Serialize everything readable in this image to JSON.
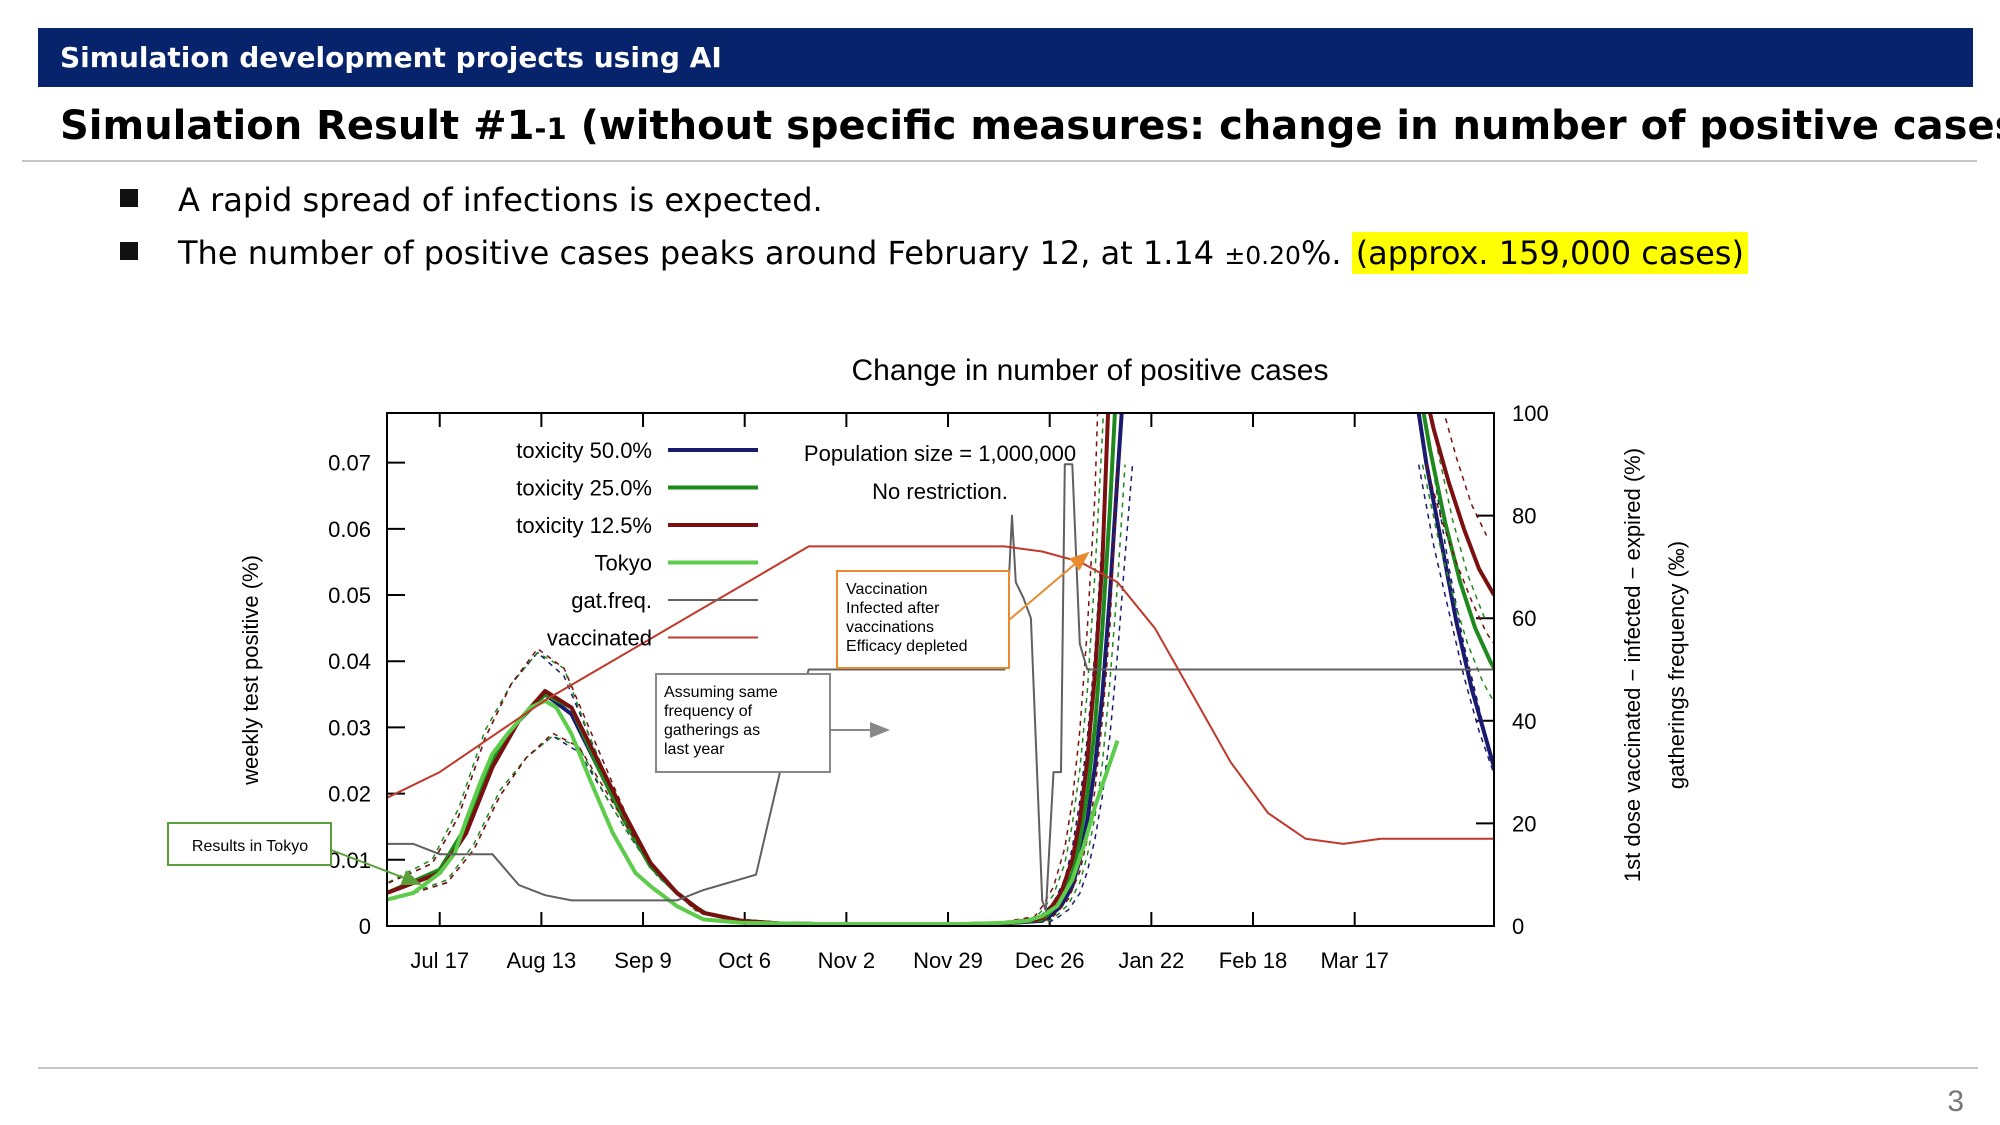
{
  "banner": "Simulation development projects using AI",
  "title": {
    "main": "Simulation Result #1",
    "sub": "-1",
    "rest": " (without specific measures: change in number of positive cases)"
  },
  "bullets": {
    "b1": "A rapid spread of infections is expected.",
    "b2_a": "The number of positive cases peaks around February 12, at 1.14 ",
    "b2_pm": "±0.20",
    "b2_b": "%. ",
    "b2_hl": "(approx. 159,000 cases)"
  },
  "page_number": "3",
  "colors": {
    "banner_bg": "#06236b",
    "highlight": "#ffff00",
    "tox50": "#1a1a6e",
    "tox25": "#1e8a1e",
    "tox12": "#7a1010",
    "tokyo": "#5ccc4a",
    "gat": "#606060",
    "vacc": "#c0392b",
    "callout_green": "#5aa03a",
    "callout_orange": "#e88a30",
    "callout_gray": "#888888"
  },
  "chart_data": {
    "type": "line",
    "title": "Change in number of positive cases",
    "ylabel": "weekly test positive (%)",
    "y2label_line1": "1st dose vaccinated − infected − expired (%)",
    "y2label_line2": "gatherings frequency (‰)",
    "x_ticks": [
      "Jul 17",
      "Aug 13",
      "Sep 9",
      "Oct 6",
      "Nov 2",
      "Nov 29",
      "Dec 26",
      "Jan 22",
      "Feb 18",
      "Mar 17"
    ],
    "xlim": [
      -14,
      280
    ],
    "ylim": [
      0,
      0.0775
    ],
    "y_ticks": [
      "0",
      "0.01",
      "0.02",
      "0.03",
      "0.04",
      "0.05",
      "0.06",
      "0.07"
    ],
    "y2lim": [
      0,
      100
    ],
    "y2_ticks": [
      "0",
      "20",
      "40",
      "60",
      "80",
      "100"
    ],
    "annotation_box": {
      "line1": "Population size = 1,000,000",
      "line2": "No restriction."
    },
    "callouts": {
      "tokyo": "Results in Tokyo",
      "gatherings": [
        "Assuming same",
        "frequency of",
        "gatherings as",
        "last year"
      ],
      "vaccination": [
        "Vaccination",
        "Infected after",
        "vaccinations",
        "Efficacy depleted"
      ]
    },
    "legend": [
      "toxicity 50.0%",
      "toxicity 25.0%",
      "toxicity 12.5%",
      "Tokyo",
      "gat.freq.",
      "vaccinated"
    ],
    "series": [
      {
        "name": "toxicity 50.0%",
        "axis": "left",
        "x": [
          -14,
          0,
          7,
          14,
          21,
          28,
          35,
          42,
          49,
          56,
          63,
          70,
          80,
          90,
          100,
          110,
          120,
          130,
          140,
          150,
          160,
          162,
          165,
          168,
          170,
          172,
          174,
          176,
          178,
          180,
          182
        ],
        "y": [
          0.005,
          0.008,
          0.014,
          0.024,
          0.031,
          0.035,
          0.032,
          0.024,
          0.016,
          0.009,
          0.005,
          0.002,
          0.0008,
          0.0004,
          0.0003,
          0.0003,
          0.0003,
          0.0003,
          0.0003,
          0.0004,
          0.0008,
          0.0015,
          0.003,
          0.006,
          0.01,
          0.016,
          0.024,
          0.035,
          0.05,
          0.068,
          0.085
        ]
      },
      {
        "name": "toxicity 50.0%",
        "axis": "left",
        "x": [
          258,
          262,
          266,
          270,
          274,
          278,
          280
        ],
        "y": [
          0.085,
          0.07,
          0.058,
          0.046,
          0.036,
          0.028,
          0.024
        ]
      },
      {
        "name": "toxicity 25.0%",
        "axis": "left",
        "x": [
          -14,
          0,
          7,
          14,
          21,
          28,
          35,
          42,
          49,
          56,
          63,
          70,
          80,
          90,
          100,
          110,
          120,
          130,
          140,
          150,
          160,
          162,
          165,
          168,
          170,
          172,
          174,
          176,
          178,
          180
        ],
        "y": [
          0.005,
          0.0085,
          0.015,
          0.025,
          0.031,
          0.035,
          0.033,
          0.024,
          0.016,
          0.009,
          0.005,
          0.002,
          0.0008,
          0.0004,
          0.0003,
          0.0003,
          0.0003,
          0.0003,
          0.0003,
          0.0004,
          0.001,
          0.002,
          0.004,
          0.008,
          0.013,
          0.02,
          0.03,
          0.045,
          0.063,
          0.085
        ]
      },
      {
        "name": "toxicity 25.0%",
        "axis": "left",
        "x": [
          259,
          263,
          267,
          271,
          275,
          279,
          280
        ],
        "y": [
          0.085,
          0.072,
          0.061,
          0.052,
          0.045,
          0.04,
          0.039
        ]
      },
      {
        "name": "toxicity 12.5%",
        "axis": "left",
        "x": [
          -14,
          0,
          7,
          14,
          21,
          28,
          35,
          42,
          49,
          56,
          63,
          70,
          80,
          90,
          100,
          110,
          120,
          130,
          140,
          150,
          160,
          162,
          165,
          168,
          170,
          172,
          174,
          176,
          178
        ],
        "y": [
          0.005,
          0.008,
          0.014,
          0.024,
          0.031,
          0.0355,
          0.033,
          0.025,
          0.017,
          0.0095,
          0.005,
          0.002,
          0.0008,
          0.0004,
          0.0003,
          0.0003,
          0.0003,
          0.0003,
          0.0003,
          0.0004,
          0.0012,
          0.0025,
          0.005,
          0.01,
          0.016,
          0.025,
          0.038,
          0.055,
          0.085
        ]
      },
      {
        "name": "toxicity 12.5%",
        "axis": "left",
        "x": [
          260,
          264,
          268,
          272,
          276,
          280
        ],
        "y": [
          0.085,
          0.075,
          0.067,
          0.06,
          0.054,
          0.05
        ]
      },
      {
        "name": "Tokyo",
        "axis": "left",
        "x": [
          -14,
          -7,
          0,
          4,
          7,
          11,
          14,
          18,
          21,
          24,
          28,
          31,
          35,
          40,
          46,
          52,
          56,
          63,
          70,
          80,
          90,
          100,
          110,
          120,
          130,
          140,
          150,
          156,
          160,
          164,
          168,
          171,
          174,
          177,
          180
        ],
        "y": [
          0.004,
          0.005,
          0.008,
          0.011,
          0.016,
          0.022,
          0.026,
          0.029,
          0.031,
          0.033,
          0.034,
          0.033,
          0.029,
          0.022,
          0.014,
          0.008,
          0.006,
          0.003,
          0.001,
          0.0005,
          0.0004,
          0.0003,
          0.0003,
          0.0003,
          0.0003,
          0.0003,
          0.0005,
          0.0008,
          0.0015,
          0.003,
          0.007,
          0.012,
          0.018,
          0.023,
          0.028
        ]
      },
      {
        "name": "gat.freq.",
        "axis": "right",
        "x": [
          -14,
          -7,
          0,
          7,
          14,
          21,
          28,
          35,
          42,
          49,
          56,
          63,
          70,
          84,
          91,
          98,
          110,
          120,
          130,
          140,
          145,
          147,
          150,
          152,
          153,
          155,
          157,
          160,
          161,
          163,
          165,
          166,
          168,
          170,
          172,
          280
        ],
        "y": [
          16,
          16,
          14,
          14,
          14,
          8,
          6,
          5,
          5,
          5,
          5,
          5,
          7,
          10,
          32,
          50,
          50,
          50,
          50,
          50,
          50,
          50,
          50,
          80,
          67,
          64,
          60,
          5,
          3,
          30,
          30,
          90,
          90,
          55,
          50,
          50
        ]
      },
      {
        "name": "vaccinated",
        "axis": "right",
        "x": [
          -14,
          0,
          14,
          28,
          42,
          56,
          70,
          84,
          98,
          112,
          126,
          140,
          150,
          160,
          170,
          180,
          190,
          200,
          210,
          220,
          230,
          240,
          250,
          260,
          270,
          280
        ],
        "y": [
          25,
          30,
          37,
          44,
          50,
          56,
          62,
          68,
          74,
          74,
          74,
          74,
          74,
          73,
          71,
          67,
          58,
          45,
          32,
          22,
          17,
          16,
          17,
          17,
          17,
          17
        ]
      }
    ]
  }
}
